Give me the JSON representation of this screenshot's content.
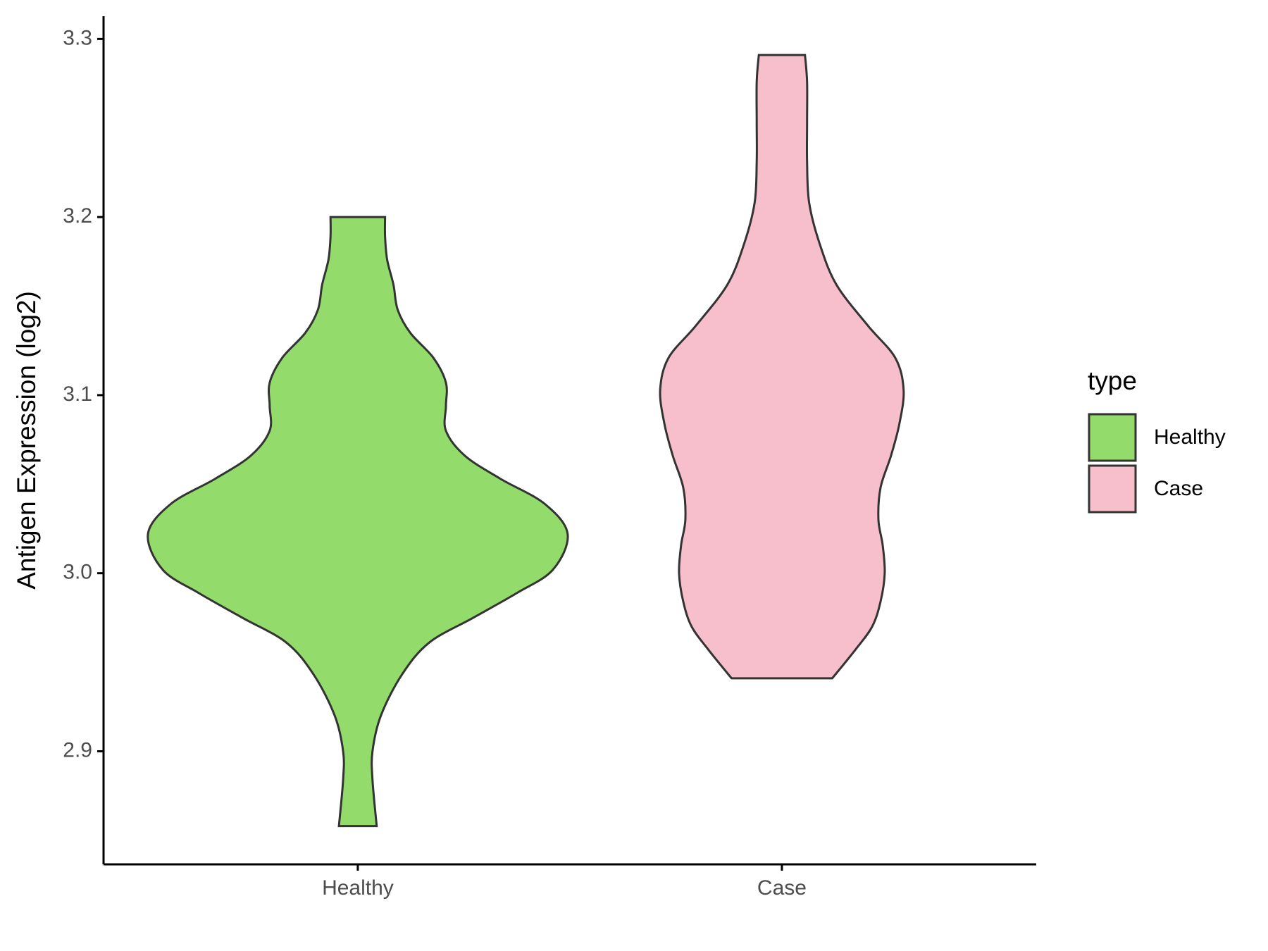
{
  "chart_data": {
    "type": "violin",
    "y_label": "Antigen Expression (log2)",
    "categories": [
      "Healthy",
      "Case"
    ],
    "legend_title": "type",
    "series": [
      {
        "name": "Healthy",
        "color": "#93DC6B",
        "y": [
          2.858,
          2.884,
          2.9,
          2.92,
          2.943,
          2.961,
          2.975,
          2.989,
          3.002,
          3.022,
          3.039,
          3.053,
          3.066,
          3.08,
          3.094,
          3.107,
          3.121,
          3.135,
          3.148,
          3.162,
          3.176,
          3.189,
          3.2
        ],
        "widths": [
          0.09,
          0.07,
          0.07,
          0.11,
          0.21,
          0.34,
          0.55,
          0.76,
          0.93,
          1.0,
          0.89,
          0.68,
          0.51,
          0.42,
          0.42,
          0.42,
          0.36,
          0.25,
          0.19,
          0.17,
          0.14,
          0.13,
          0.13
        ]
      },
      {
        "name": "Case",
        "color": "#F7BFCB",
        "y": [
          2.941,
          2.957,
          2.97,
          2.984,
          3.0,
          3.016,
          3.03,
          3.048,
          3.066,
          3.084,
          3.103,
          3.121,
          3.139,
          3.162,
          3.185,
          3.208,
          3.231,
          3.253,
          3.276,
          3.291
        ],
        "widths": [
          0.24,
          0.35,
          0.43,
          0.47,
          0.49,
          0.48,
          0.46,
          0.47,
          0.52,
          0.56,
          0.58,
          0.54,
          0.41,
          0.26,
          0.18,
          0.13,
          0.12,
          0.12,
          0.12,
          0.11
        ]
      }
    ],
    "ylim": [
      2.8365,
      3.3128
    ],
    "yticks": [
      2.9,
      {
        "value": 3,
        "label": "3.0"
      },
      3.1,
      3.2,
      3.3
    ]
  }
}
